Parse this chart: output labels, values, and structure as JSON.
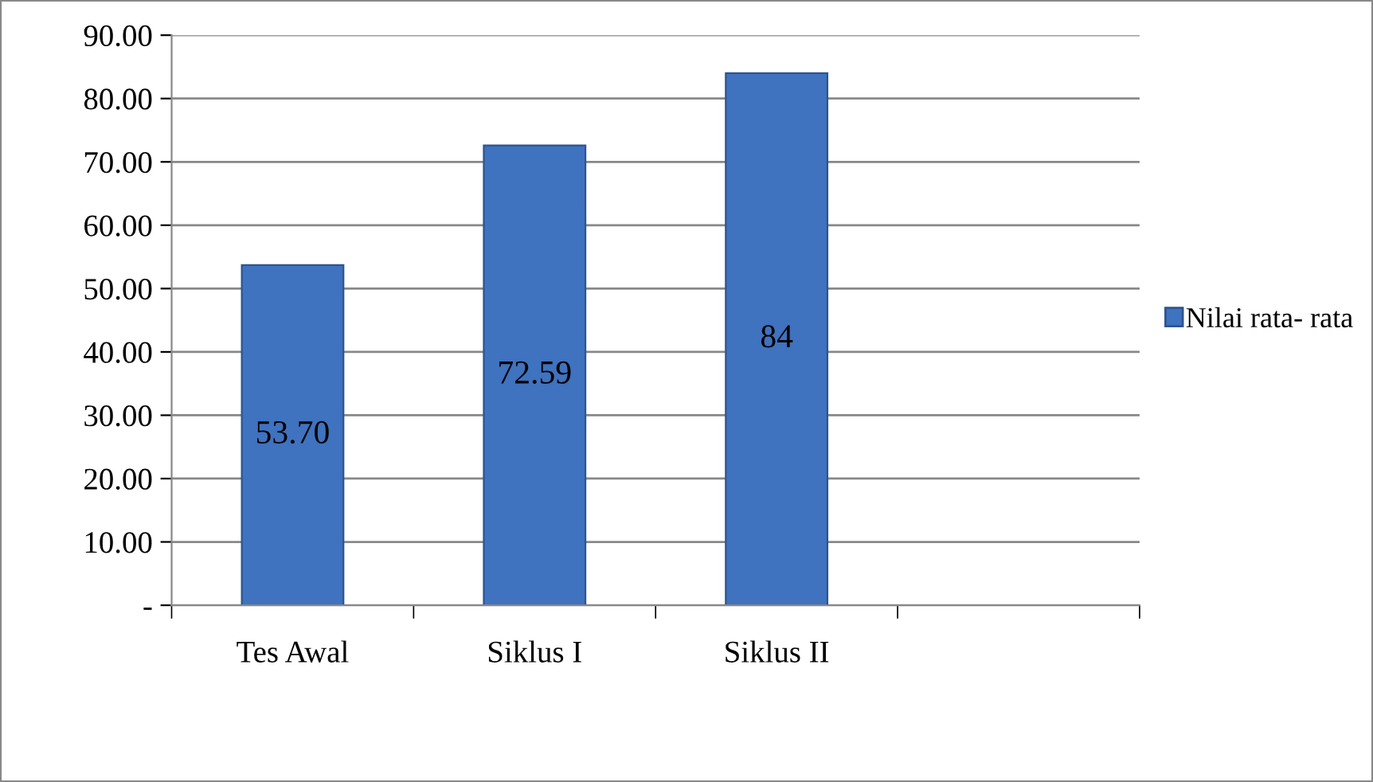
{
  "chart_data": {
    "type": "bar",
    "categories": [
      "Tes Awal",
      "Siklus I",
      "Siklus II",
      null
    ],
    "series": [
      {
        "name": "Nilai rata- rata",
        "color": "#3f72bf",
        "values": [
          53.7,
          72.59,
          84,
          null
        ],
        "value_labels": [
          "53.70",
          "72.59",
          "84",
          null
        ]
      }
    ],
    "ylim": [
      0,
      90
    ],
    "yticks": [
      {
        "value": 0,
        "label": "-"
      },
      {
        "value": 10,
        "label": "10.00"
      },
      {
        "value": 20,
        "label": "20.00"
      },
      {
        "value": 30,
        "label": "30.00"
      },
      {
        "value": 40,
        "label": "40.00"
      },
      {
        "value": 50,
        "label": "50.00"
      },
      {
        "value": 60,
        "label": "60.00"
      },
      {
        "value": 70,
        "label": "70.00"
      },
      {
        "value": 80,
        "label": "80.00"
      },
      {
        "value": 90,
        "label": "90.00"
      }
    ],
    "grid": "y",
    "legend": "right"
  }
}
